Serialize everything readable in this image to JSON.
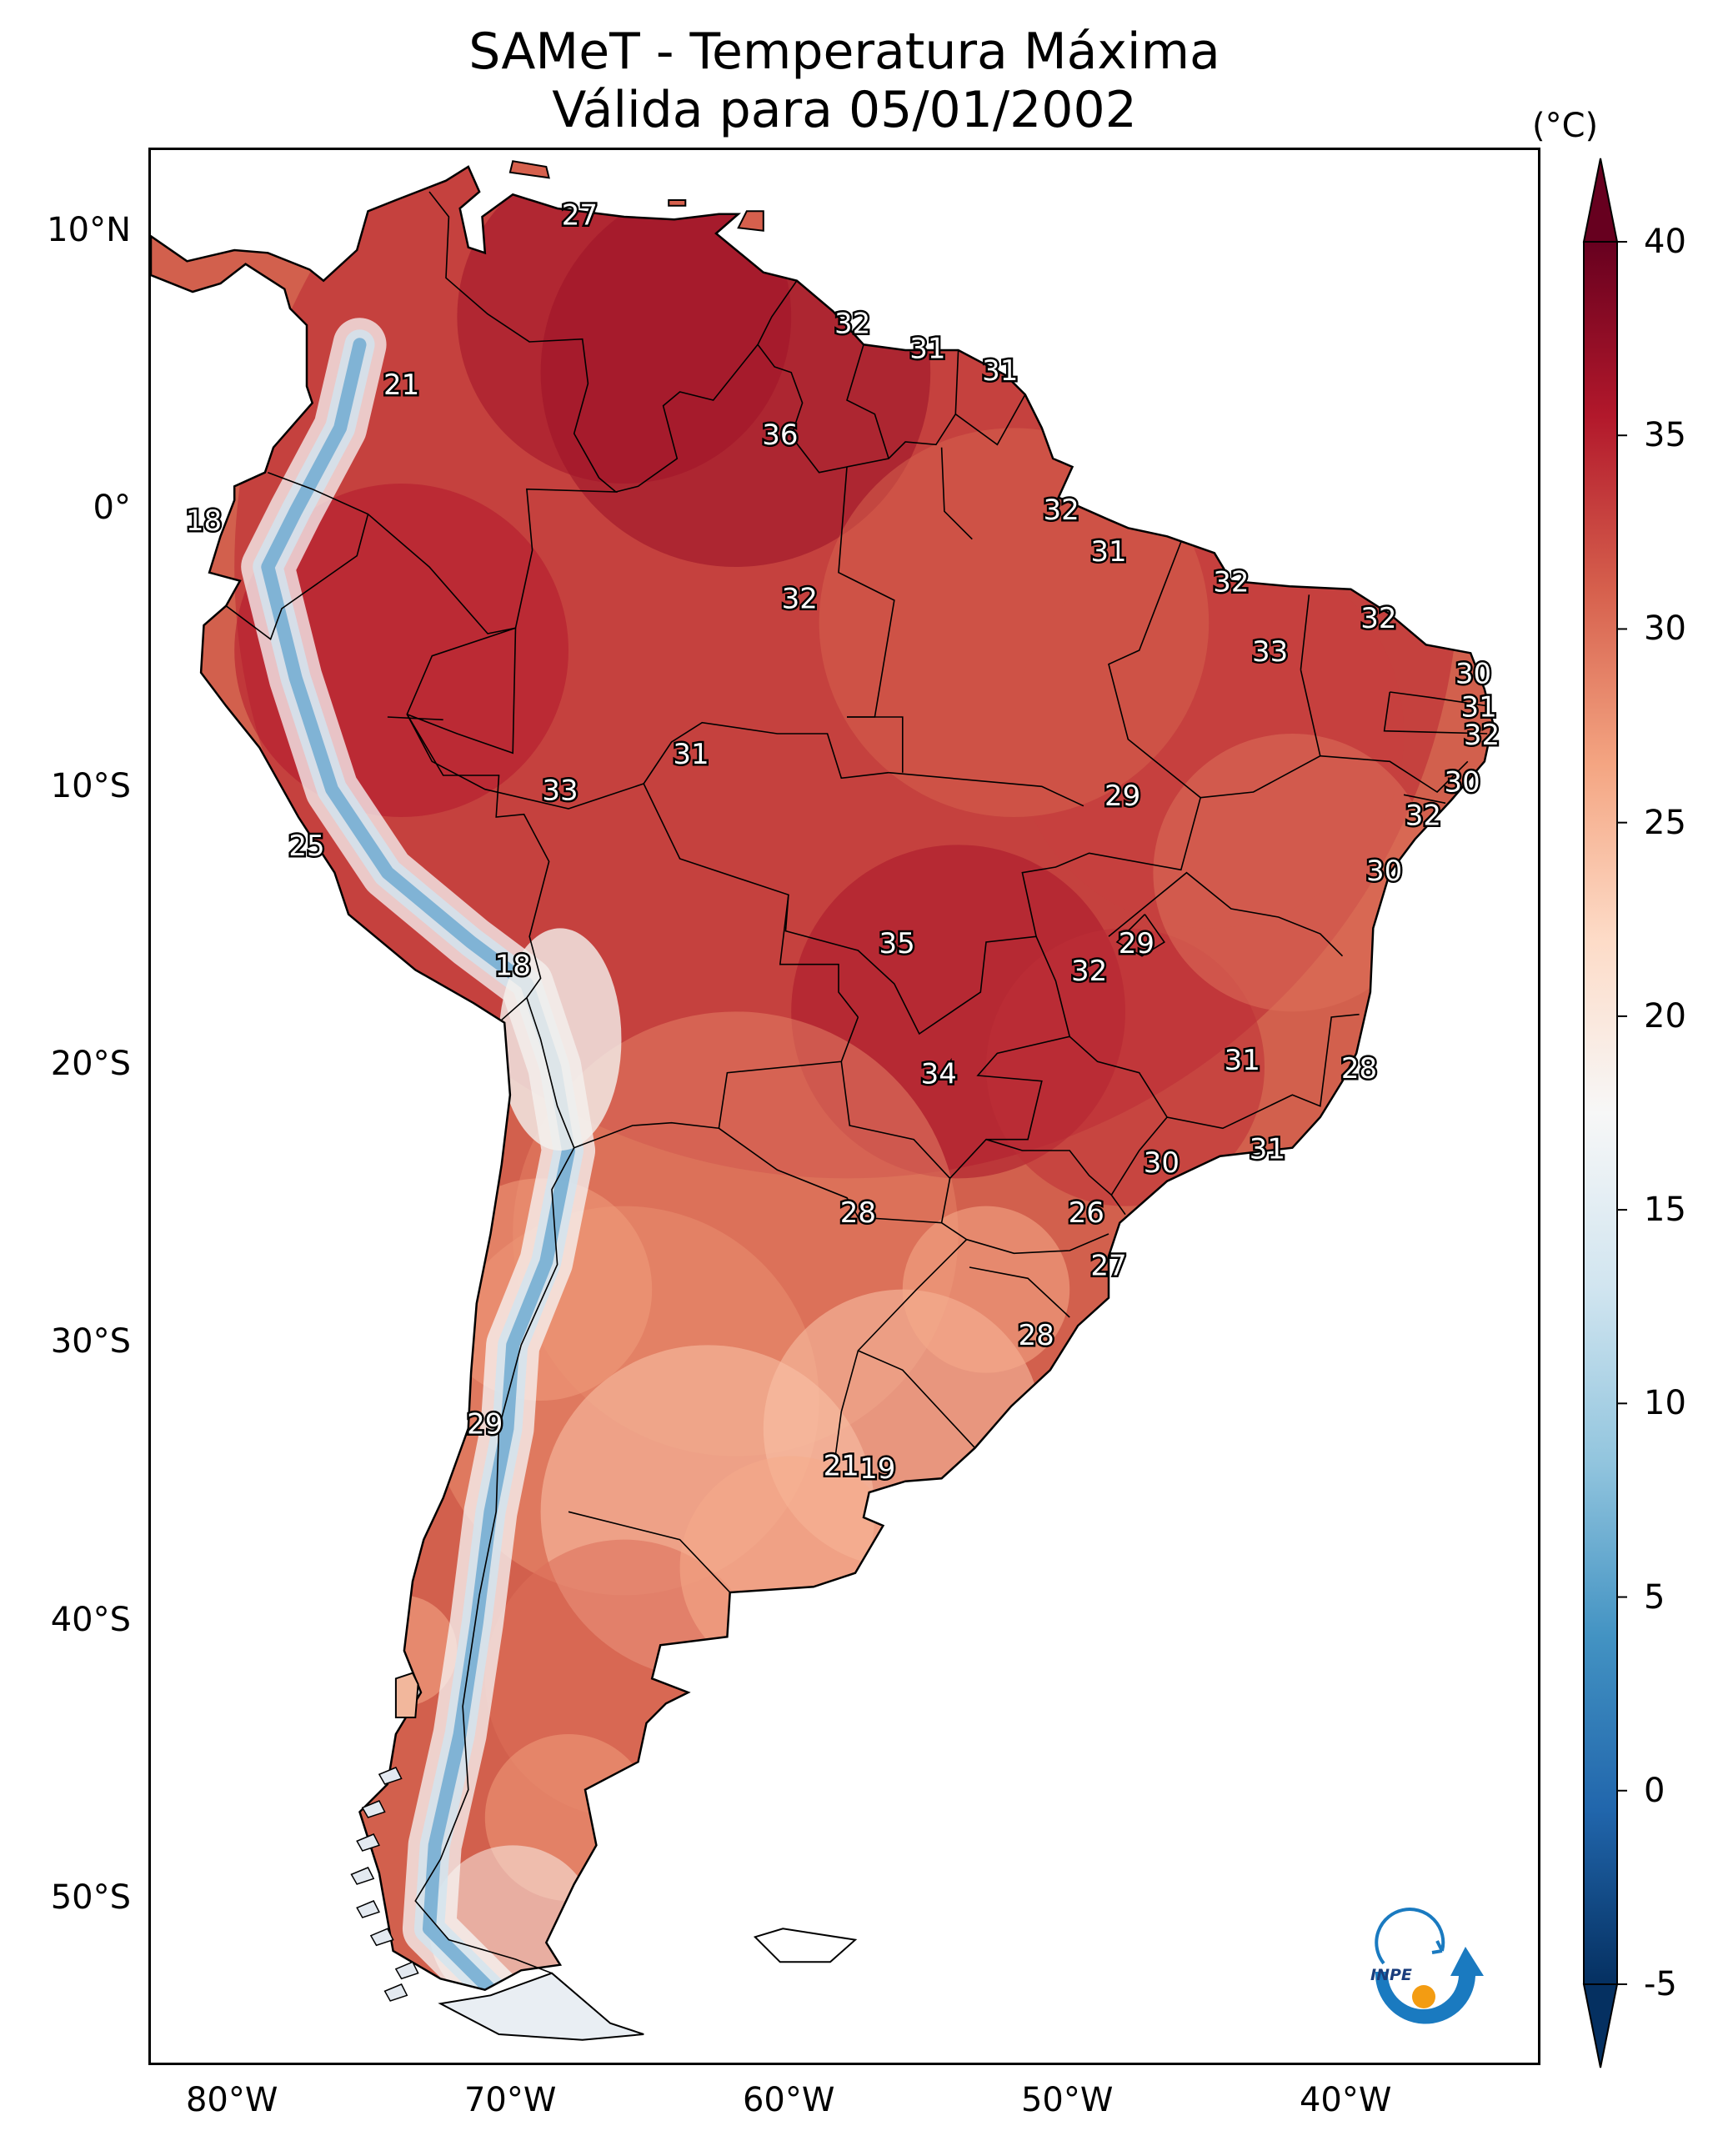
{
  "title": {
    "line1": "SAMeT - Temperatura Máxima",
    "line2": "Válida para 05/01/2002"
  },
  "axes": {
    "lat_ticks": [
      {
        "deg": 10,
        "label": "10°N"
      },
      {
        "deg": 0,
        "label": "0°"
      },
      {
        "deg": -10,
        "label": "10°S"
      },
      {
        "deg": -20,
        "label": "20°S"
      },
      {
        "deg": -30,
        "label": "30°S"
      },
      {
        "deg": -40,
        "label": "40°S"
      },
      {
        "deg": -50,
        "label": "50°S"
      }
    ],
    "lon_ticks": [
      {
        "deg": -80,
        "label": "80°W"
      },
      {
        "deg": -70,
        "label": "70°W"
      },
      {
        "deg": -60,
        "label": "60°W"
      },
      {
        "deg": -50,
        "label": "50°W"
      },
      {
        "deg": -40,
        "label": "40°W"
      }
    ],
    "lon_range": [
      -83,
      -33
    ],
    "lat_range": [
      -56,
      13
    ]
  },
  "colorbar": {
    "unit": "(°C)",
    "range": [
      -5,
      40
    ],
    "ticks": [
      {
        "value": 40,
        "label": "40"
      },
      {
        "value": 35,
        "label": "35"
      },
      {
        "value": 30,
        "label": "30"
      },
      {
        "value": 25,
        "label": "25"
      },
      {
        "value": 20,
        "label": "20"
      },
      {
        "value": 15,
        "label": "15"
      },
      {
        "value": 10,
        "label": "10"
      },
      {
        "value": 5,
        "label": "5"
      },
      {
        "value": 0,
        "label": "0"
      },
      {
        "value": -5,
        "label": "-5"
      }
    ],
    "colors": [
      "#053061",
      "#2166ac",
      "#4393c3",
      "#92c5de",
      "#d1e5f0",
      "#f7f7f7",
      "#fddbc7",
      "#f4a582",
      "#d6604d",
      "#b2182b",
      "#67001f"
    ]
  },
  "logo": {
    "text": "INPE"
  },
  "value_labels": [
    {
      "lon": -67.6,
      "lat": 10.6,
      "text": "27"
    },
    {
      "lon": -57.8,
      "lat": 6.7,
      "text": "32"
    },
    {
      "lon": -55.1,
      "lat": 5.8,
      "text": "31"
    },
    {
      "lon": -52.5,
      "lat": 5.0,
      "text": "31"
    },
    {
      "lon": -74.0,
      "lat": 4.5,
      "text": "21"
    },
    {
      "lon": -60.4,
      "lat": 2.7,
      "text": "36"
    },
    {
      "lon": -50.3,
      "lat": 0.0,
      "text": "32"
    },
    {
      "lon": -81.1,
      "lat": -0.4,
      "text": "18"
    },
    {
      "lon": -48.6,
      "lat": -1.5,
      "text": "31"
    },
    {
      "lon": -59.7,
      "lat": -3.2,
      "text": "32"
    },
    {
      "lon": -44.2,
      "lat": -2.6,
      "text": "32"
    },
    {
      "lon": -38.9,
      "lat": -3.9,
      "text": "32"
    },
    {
      "lon": -42.8,
      "lat": -5.1,
      "text": "33"
    },
    {
      "lon": -35.5,
      "lat": -5.9,
      "text": "30"
    },
    {
      "lon": -35.3,
      "lat": -7.1,
      "text": "31"
    },
    {
      "lon": -35.2,
      "lat": -8.1,
      "text": "32"
    },
    {
      "lon": -63.6,
      "lat": -8.8,
      "text": "31"
    },
    {
      "lon": -68.3,
      "lat": -10.1,
      "text": "33"
    },
    {
      "lon": -48.1,
      "lat": -10.3,
      "text": "29"
    },
    {
      "lon": -35.9,
      "lat": -9.8,
      "text": "30"
    },
    {
      "lon": -37.3,
      "lat": -11.0,
      "text": "32"
    },
    {
      "lon": -77.4,
      "lat": -12.1,
      "text": "25"
    },
    {
      "lon": -38.7,
      "lat": -13.0,
      "text": "30"
    },
    {
      "lon": -56.2,
      "lat": -15.6,
      "text": "35"
    },
    {
      "lon": -47.6,
      "lat": -15.6,
      "text": "29"
    },
    {
      "lon": -49.3,
      "lat": -16.6,
      "text": "32"
    },
    {
      "lon": -70.0,
      "lat": -16.4,
      "text": "18"
    },
    {
      "lon": -54.7,
      "lat": -20.3,
      "text": "34"
    },
    {
      "lon": -43.8,
      "lat": -19.8,
      "text": "31"
    },
    {
      "lon": -39.6,
      "lat": -20.1,
      "text": "28"
    },
    {
      "lon": -42.9,
      "lat": -23.0,
      "text": "31"
    },
    {
      "lon": -46.7,
      "lat": -23.5,
      "text": "30"
    },
    {
      "lon": -57.6,
      "lat": -25.3,
      "text": "28"
    },
    {
      "lon": -49.4,
      "lat": -25.3,
      "text": "26"
    },
    {
      "lon": -48.6,
      "lat": -27.2,
      "text": "27"
    },
    {
      "lon": -51.2,
      "lat": -29.7,
      "text": "28"
    },
    {
      "lon": -71.0,
      "lat": -32.9,
      "text": "29"
    },
    {
      "lon": -58.2,
      "lat": -34.4,
      "text": "21"
    },
    {
      "lon": -56.9,
      "lat": -34.5,
      "text": "19"
    }
  ]
}
